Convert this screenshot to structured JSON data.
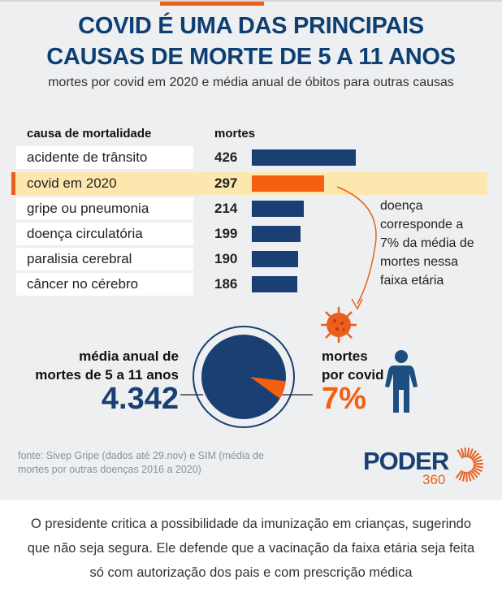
{
  "title_lines": [
    "COVID É UMA DAS PRINCIPAIS",
    "CAUSAS DE MORTE DE 5 A 11 ANOS"
  ],
  "subtitle": "mortes por covid em 2020 e média anual de óbitos para outras causas",
  "chart_data": {
    "type": "bar",
    "orientation": "horizontal",
    "column_headers": [
      "causa de mortalidade",
      "mortes"
    ],
    "categories": [
      "acidente de trânsito",
      "covid em 2020",
      "gripe ou pneumonia",
      "doença circulatória",
      "paralisia cerebral",
      "câncer no cérebro"
    ],
    "values": [
      426,
      297,
      214,
      199,
      190,
      186
    ],
    "highlight": "covid em 2020",
    "colors": {
      "bar": "#1a3f72",
      "highlight": "#f4600f",
      "highlight_row": "#fde7ae"
    },
    "annotation": "doença corresponde a 7% da média de mortes nessa faixa etária",
    "pie": {
      "total_label": "média anual de mortes de 5 a 11 anos",
      "total": "4.342",
      "slice_label": "mortes por covid",
      "slice_percent": 7,
      "slice_text": "7%"
    }
  },
  "note_lines": [
    "doença",
    "corresponde a",
    "7% da média de",
    "mortes nessa",
    "faixa etária"
  ],
  "left_label": [
    "média anual de",
    "mortes de 5 a 11 anos"
  ],
  "right_label": [
    "mortes",
    "por covid"
  ],
  "source_lines": [
    "fonte: Sivep Gripe (dados até 29.nov) e SIM (média de",
    "mortes por outras doenças 2016 a 2020)"
  ],
  "logo": {
    "word": "PODER",
    "number": "360"
  },
  "caption_lines": [
    "O presidente critica a possibilidade da imunização em crianças, sugerindo",
    "que não seja segura. Ele defende que a vacinação da faixa etária seja feita",
    "só com autorização dos pais e com prescrição médica"
  ]
}
